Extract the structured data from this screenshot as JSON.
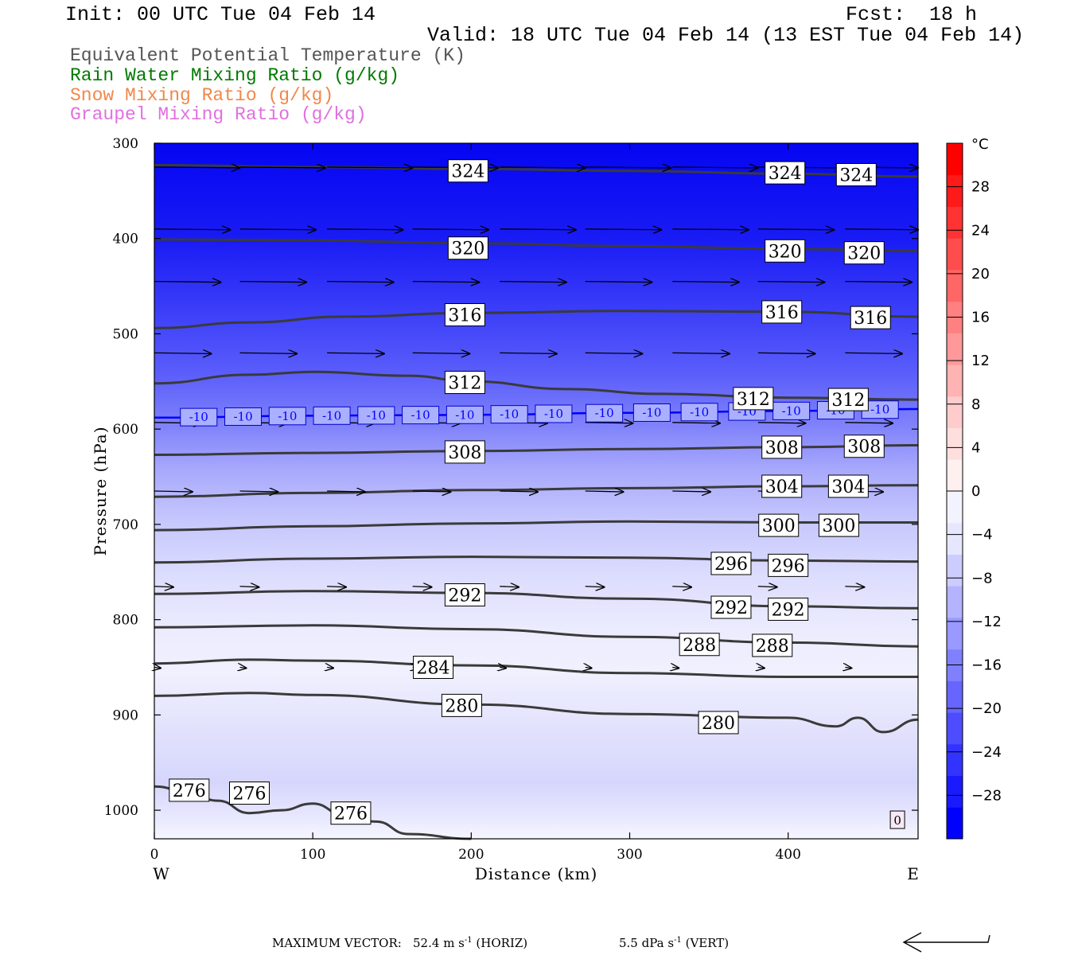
{
  "header": {
    "init": "Init: 00 UTC Tue 04 Feb 14",
    "fcst_label": "Fcst:",
    "fcst_value": "18 h",
    "valid": "Valid: 18 UTC Tue 04 Feb 14 (13 EST Tue 04 Feb 14)"
  },
  "legend": [
    {
      "label": "Equivalent Potential Temperature (K)",
      "color": "#555555"
    },
    {
      "label": "Rain Water Mixing Ratio (g/kg)",
      "color": "#007a00"
    },
    {
      "label": "Snow Mixing Ratio (g/kg)",
      "color": "#f0884a"
    },
    {
      "label": "Graupel Mixing Ratio (g/kg)",
      "color": "#e070e0"
    }
  ],
  "footer": {
    "max_vector_label": "MAXIMUM VECTOR:",
    "horiz_value": "52.4",
    "horiz_unit": "m s",
    "horiz_exp": "-1",
    "horiz_tag": "(HORIZ)",
    "vert_value": "5.5",
    "vert_unit": "dPa s",
    "vert_exp": "-1",
    "vert_tag": "(VERT)"
  },
  "chart_data": {
    "type": "cross-section",
    "xlabel": "Distance (km)",
    "ylabel": "Pressure (hPa)",
    "xlim": [
      0,
      482
    ],
    "ylim": [
      1030,
      300
    ],
    "x_ticks": [
      0,
      100,
      200,
      300,
      400
    ],
    "y_ticks": [
      300,
      400,
      500,
      600,
      700,
      800,
      900,
      1000
    ],
    "x_end_labels": {
      "left": "W",
      "right": "E"
    },
    "colorbar": {
      "unit": "°C",
      "ticks": [
        28,
        24,
        20,
        16,
        12,
        8,
        4,
        0,
        -4,
        -8,
        -12,
        -16,
        -20,
        -24,
        -28
      ],
      "range": [
        -32,
        32
      ],
      "colors": [
        "#0000ff",
        "#1a1aff",
        "#3333ff",
        "#4d4dff",
        "#6666ff",
        "#8080ff",
        "#9999ff",
        "#b3b3ff",
        "#ccccff",
        "#e6e6ff",
        "#f3f3ff",
        "#fff0f0",
        "#ffdede",
        "#ffcccc",
        "#ffb3b3",
        "#ff9999",
        "#ff8080",
        "#ff6666",
        "#ff4d4d",
        "#ff3333",
        "#ff1a1a",
        "#ff0000"
      ]
    },
    "temperature_contour": {
      "label": "-10",
      "color": "#0000ff",
      "points": [
        [
          0,
          588
        ],
        [
          100,
          586
        ],
        [
          200,
          585
        ],
        [
          300,
          583
        ],
        [
          400,
          581
        ],
        [
          482,
          579
        ]
      ],
      "label_x": [
        28,
        56,
        84,
        112,
        140,
        168,
        196,
        224,
        252,
        284,
        314,
        344,
        374,
        402,
        430,
        458
      ]
    },
    "theta_e": [
      {
        "value": 324,
        "points": [
          [
            0,
            323
          ],
          [
            100,
            325
          ],
          [
            200,
            327
          ],
          [
            300,
            329
          ],
          [
            400,
            332
          ],
          [
            482,
            335
          ]
        ],
        "labels": [
          [
            198,
            329
          ],
          [
            398,
            331
          ],
          [
            443,
            333
          ]
        ]
      },
      {
        "value": 320,
        "points": [
          [
            0,
            401
          ],
          [
            100,
            402
          ],
          [
            200,
            405
          ],
          [
            300,
            408
          ],
          [
            400,
            411
          ],
          [
            482,
            413
          ]
        ],
        "labels": [
          [
            198,
            410
          ],
          [
            398,
            413
          ],
          [
            448,
            415
          ]
        ]
      },
      {
        "value": 316,
        "points": [
          [
            0,
            494
          ],
          [
            60,
            488
          ],
          [
            120,
            482
          ],
          [
            200,
            478
          ],
          [
            300,
            476
          ],
          [
            400,
            477
          ],
          [
            482,
            482
          ]
        ],
        "labels": [
          [
            196,
            480
          ],
          [
            396,
            477
          ],
          [
            452,
            483
          ]
        ]
      },
      {
        "value": 312,
        "points": [
          [
            0,
            552
          ],
          [
            60,
            543
          ],
          [
            100,
            540
          ],
          [
            160,
            544
          ],
          [
            200,
            550
          ],
          [
            260,
            558
          ],
          [
            320,
            563
          ],
          [
            400,
            567
          ],
          [
            482,
            569
          ]
        ],
        "labels": [
          [
            196,
            551
          ],
          [
            378,
            568
          ],
          [
            438,
            569
          ]
        ]
      },
      {
        "value": 308,
        "points": [
          [
            0,
            627
          ],
          [
            100,
            625
          ],
          [
            200,
            623
          ],
          [
            300,
            621
          ],
          [
            400,
            619
          ],
          [
            482,
            617
          ]
        ],
        "labels": [
          [
            196,
            624
          ],
          [
            396,
            619
          ],
          [
            448,
            618
          ]
        ]
      },
      {
        "value": 304,
        "points": [
          [
            0,
            671
          ],
          [
            100,
            667
          ],
          [
            200,
            664
          ],
          [
            300,
            662
          ],
          [
            400,
            660
          ],
          [
            482,
            659
          ]
        ],
        "labels": [
          [
            396,
            660
          ],
          [
            438,
            660
          ]
        ]
      },
      {
        "value": 300,
        "points": [
          [
            0,
            706
          ],
          [
            100,
            702
          ],
          [
            200,
            699
          ],
          [
            300,
            697
          ],
          [
            400,
            698
          ],
          [
            482,
            698
          ]
        ],
        "labels": [
          [
            394,
            701
          ],
          [
            432,
            701
          ]
        ]
      },
      {
        "value": 296,
        "points": [
          [
            0,
            740
          ],
          [
            100,
            736
          ],
          [
            200,
            734
          ],
          [
            300,
            735
          ],
          [
            400,
            738
          ],
          [
            482,
            739
          ]
        ],
        "labels": [
          [
            364,
            741
          ],
          [
            400,
            743
          ]
        ]
      },
      {
        "value": 292,
        "points": [
          [
            0,
            773
          ],
          [
            100,
            770
          ],
          [
            200,
            772
          ],
          [
            300,
            778
          ],
          [
            400,
            786
          ],
          [
            482,
            788
          ]
        ],
        "labels": [
          [
            196,
            774
          ],
          [
            364,
            787
          ],
          [
            400,
            789
          ]
        ]
      },
      {
        "value": 288,
        "points": [
          [
            0,
            808
          ],
          [
            100,
            806
          ],
          [
            200,
            810
          ],
          [
            300,
            818
          ],
          [
            400,
            824
          ],
          [
            482,
            828
          ]
        ],
        "labels": [
          [
            344,
            826
          ],
          [
            390,
            827
          ]
        ]
      },
      {
        "value": 284,
        "points": [
          [
            0,
            846
          ],
          [
            60,
            842
          ],
          [
            100,
            843
          ],
          [
            200,
            848
          ],
          [
            300,
            856
          ],
          [
            400,
            860
          ],
          [
            482,
            860
          ]
        ],
        "labels": [
          [
            176,
            850
          ]
        ]
      },
      {
        "value": 280,
        "points": [
          [
            0,
            880
          ],
          [
            60,
            877
          ],
          [
            100,
            879
          ],
          [
            200,
            889
          ],
          [
            300,
            899
          ],
          [
            400,
            903
          ],
          [
            430,
            912
          ],
          [
            444,
            903
          ],
          [
            460,
            918
          ],
          [
            482,
            905
          ]
        ],
        "labels": [
          [
            194,
            890
          ],
          [
            356,
            908
          ]
        ]
      },
      {
        "value": 276,
        "points": [
          [
            0,
            975
          ],
          [
            20,
            980
          ],
          [
            40,
            990
          ],
          [
            60,
            1003
          ],
          [
            80,
            1000
          ],
          [
            100,
            993
          ],
          [
            120,
            1005
          ],
          [
            140,
            1012
          ],
          [
            160,
            1025
          ],
          [
            200,
            1030
          ]
        ],
        "labels": [
          [
            22,
            979
          ],
          [
            60,
            982
          ],
          [
            124,
            1003
          ]
        ]
      }
    ],
    "wind_vector_rows": [
      {
        "pressure": 325,
        "x": [
          0,
          54,
          109,
          163,
          218,
          272,
          327,
          381,
          436
        ],
        "length_km": 54
      },
      {
        "pressure": 390,
        "x": [
          0,
          54,
          109,
          163,
          218,
          272,
          327,
          381,
          436
        ],
        "length_km": 48
      },
      {
        "pressure": 445,
        "x": [
          0,
          54,
          109,
          163,
          218,
          272,
          327,
          381,
          436
        ],
        "length_km": 42
      },
      {
        "pressure": 520,
        "x": [
          0,
          54,
          109,
          163,
          218,
          272,
          327,
          381,
          436
        ],
        "length_km": 36
      },
      {
        "pressure": 593,
        "x": [
          0,
          54,
          109,
          163,
          218,
          272,
          327,
          381,
          436
        ],
        "length_km": 30
      },
      {
        "pressure": 665,
        "x": [
          0,
          54,
          109,
          163,
          218,
          272,
          327,
          381,
          436
        ],
        "length_km": 24
      },
      {
        "pressure": 765,
        "x": [
          0,
          54,
          109,
          163,
          218,
          272,
          327,
          381,
          436
        ],
        "length_km": 12
      },
      {
        "pressure": 850,
        "x": [
          0,
          54,
          109,
          163,
          218,
          272,
          327,
          381,
          436
        ],
        "length_km": 4
      }
    ],
    "zero_label": {
      "x": 469,
      "p": 1010,
      "text": "0"
    }
  }
}
